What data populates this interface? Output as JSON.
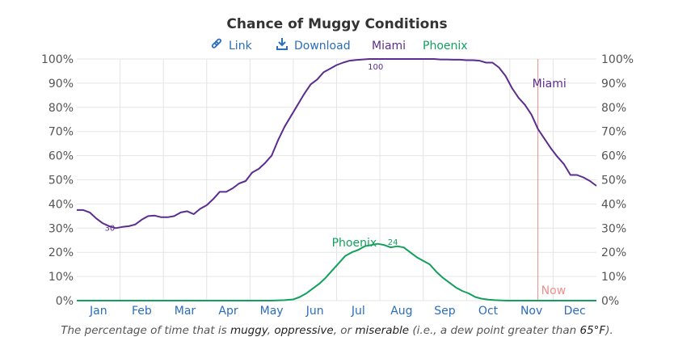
{
  "title": "Chance of Muggy Conditions",
  "toolbar": {
    "link_label": "Link",
    "download_label": "Download",
    "link_icon": "link-icon",
    "download_icon": "download-icon"
  },
  "colors": {
    "miami": "#5b2d8e",
    "phoenix": "#12a05c",
    "now": "#e98a8a",
    "tool": "#2a6ebb"
  },
  "chart_data": {
    "type": "line",
    "title": "Chance of Muggy Conditions",
    "xlabel": "",
    "ylabel": "",
    "ylim": [
      0,
      100
    ],
    "xlim": [
      0,
      12
    ],
    "y_ticks": [
      "0%",
      "10%",
      "20%",
      "30%",
      "40%",
      "50%",
      "60%",
      "70%",
      "80%",
      "90%",
      "100%"
    ],
    "y_tick_values": [
      0,
      10,
      20,
      30,
      40,
      50,
      60,
      70,
      80,
      90,
      100
    ],
    "month_labels": [
      "Jan",
      "Feb",
      "Mar",
      "Apr",
      "May",
      "Jun",
      "Jul",
      "Aug",
      "Sep",
      "Oct",
      "Nov",
      "Dec"
    ],
    "legend": [
      "Miami",
      "Phoenix"
    ],
    "legend_position": "top-center",
    "now_month": 10.65,
    "now_label": "Now",
    "series": [
      {
        "name": "Miami",
        "label_text": "Miami",
        "min_label": "30",
        "min_at": 0.65,
        "min_value": 30,
        "max_label": "100",
        "max_at": 6.9,
        "max_value": 100,
        "x": [
          0,
          0.15,
          0.3,
          0.45,
          0.6,
          0.75,
          0.9,
          1.05,
          1.2,
          1.35,
          1.5,
          1.65,
          1.8,
          1.95,
          2.1,
          2.25,
          2.4,
          2.55,
          2.7,
          2.85,
          3.0,
          3.15,
          3.3,
          3.45,
          3.6,
          3.75,
          3.9,
          4.05,
          4.2,
          4.35,
          4.5,
          4.65,
          4.8,
          4.95,
          5.1,
          5.25,
          5.4,
          5.55,
          5.7,
          5.85,
          6.0,
          6.15,
          6.3,
          6.45,
          6.6,
          6.75,
          6.9,
          7.05,
          7.2,
          7.35,
          7.5,
          7.65,
          7.8,
          7.95,
          8.1,
          8.25,
          8.4,
          8.55,
          8.7,
          8.85,
          9.0,
          9.15,
          9.3,
          9.45,
          9.6,
          9.75,
          9.9,
          10.05,
          10.2,
          10.35,
          10.5,
          10.65,
          10.8,
          10.95,
          11.1,
          11.25,
          11.4,
          11.55,
          11.7,
          11.85,
          12.0
        ],
        "values": [
          37.5,
          37.5,
          36.5,
          34.0,
          32.0,
          30.8,
          30.0,
          30.5,
          30.8,
          31.5,
          33.5,
          35.0,
          35.2,
          34.5,
          34.5,
          35.0,
          36.5,
          37.0,
          35.8,
          38.0,
          39.5,
          42.0,
          45.0,
          45.0,
          46.5,
          48.5,
          49.5,
          53.0,
          54.5,
          57.0,
          60.0,
          66.5,
          72.0,
          76.5,
          81.0,
          85.5,
          89.5,
          91.5,
          94.5,
          96.0,
          97.5,
          98.5,
          99.3,
          99.6,
          99.8,
          100.0,
          100.0,
          100.0,
          100.0,
          100.0,
          100.0,
          100.0,
          100.0,
          100.0,
          100.0,
          100.0,
          99.8,
          99.8,
          99.7,
          99.7,
          99.5,
          99.5,
          99.3,
          98.5,
          98.5,
          96.5,
          93.0,
          88.0,
          84.0,
          81.0,
          77.0,
          71.0,
          67.0,
          63.0,
          59.5,
          56.5,
          52.0,
          52.0,
          51.0,
          49.5,
          47.5
        ]
      },
      {
        "name": "Phoenix",
        "label_text": "Phoenix",
        "max_label": "24",
        "max_at": 7.3,
        "max_value": 24,
        "x": [
          0,
          0.5,
          1.0,
          1.5,
          2.0,
          2.5,
          3.0,
          3.5,
          4.0,
          4.5,
          4.8,
          5.0,
          5.15,
          5.3,
          5.45,
          5.6,
          5.75,
          5.9,
          6.05,
          6.2,
          6.35,
          6.5,
          6.65,
          6.8,
          6.95,
          7.1,
          7.25,
          7.4,
          7.55,
          7.7,
          7.85,
          8.0,
          8.15,
          8.3,
          8.45,
          8.6,
          8.75,
          8.9,
          9.05,
          9.2,
          9.35,
          9.5,
          9.65,
          9.8,
          9.95,
          10.1,
          10.3,
          10.6,
          11.0,
          11.5,
          12.0
        ],
        "values": [
          0,
          0,
          0,
          0,
          0,
          0,
          0,
          0,
          0,
          0,
          0.2,
          0.5,
          1.5,
          3.0,
          5.0,
          7.0,
          9.5,
          12.5,
          15.5,
          18.5,
          20.0,
          21.0,
          22.5,
          23.0,
          23.5,
          23.0,
          22.0,
          22.5,
          22.0,
          20.0,
          18.0,
          16.5,
          15.0,
          12.0,
          9.5,
          7.5,
          5.5,
          4.0,
          3.0,
          1.5,
          0.8,
          0.4,
          0.2,
          0.1,
          0,
          0,
          0,
          0,
          0,
          0,
          0
        ]
      }
    ]
  },
  "caption": {
    "prefix": "The percentage of time that is ",
    "muggy": "muggy",
    "sep1": ", ",
    "oppressive": "oppressive",
    "sep2": ", or ",
    "miserable": "miserable",
    "middle": " (i.e., a dew point greater than ",
    "threshold": "65°F",
    "suffix": ")."
  }
}
